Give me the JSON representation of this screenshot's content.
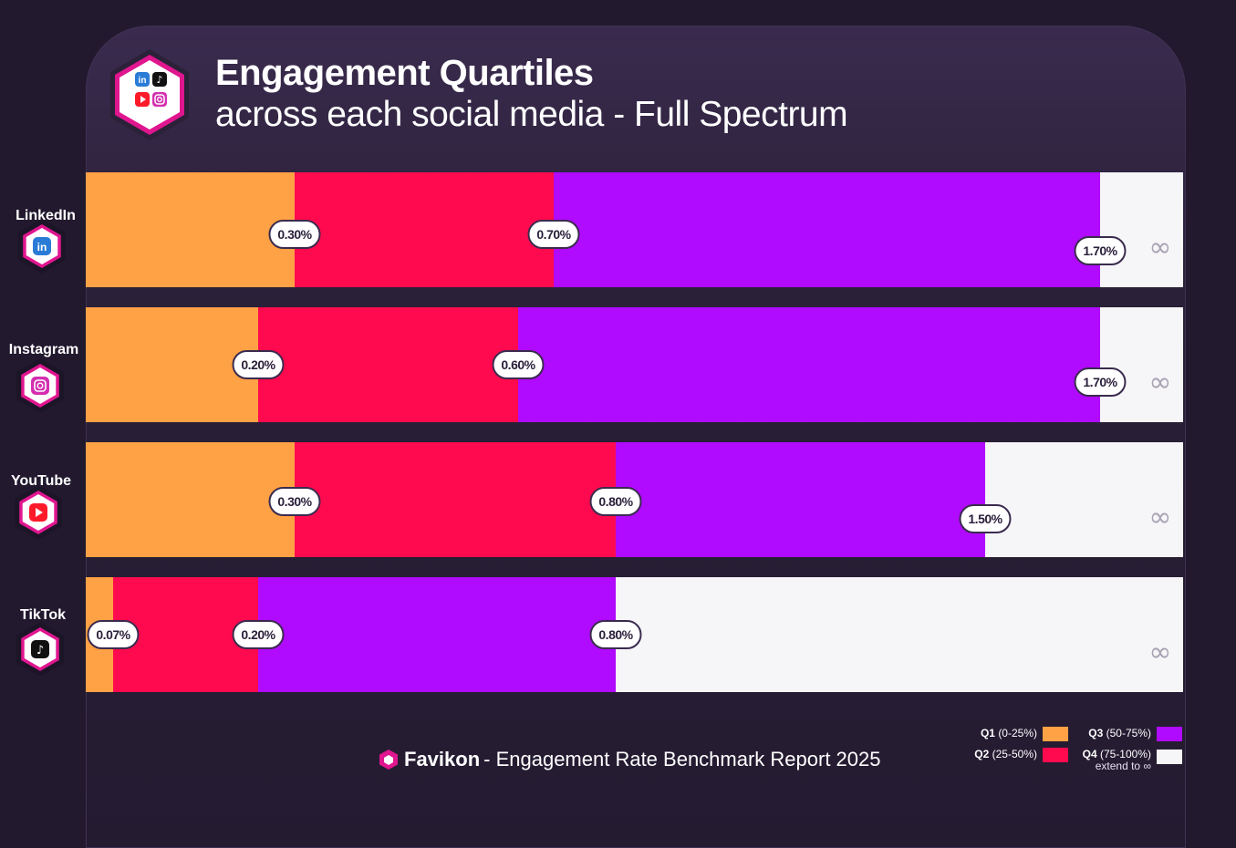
{
  "title": "Engagement Quartiles",
  "subtitle": "across each social media - Full Spectrum",
  "footer": {
    "brand": "Favikon",
    "rest": "- Engagement Rate Benchmark Report 2025"
  },
  "legend": {
    "q1": {
      "name": "Q1",
      "range": "(0-25%)"
    },
    "q2": {
      "name": "Q2",
      "range": "(25-50%)"
    },
    "q3": {
      "name": "Q3",
      "range": "(50-75%)"
    },
    "q4": {
      "name": "Q4",
      "range": "(75-100%)"
    },
    "q4_note": "extend to ∞"
  },
  "colors": {
    "q1": "#ffa145",
    "q2": "#ff0a4e",
    "q3": "#b00aff",
    "q4": "#f6f5f8",
    "background": "#22192f"
  },
  "chart_data": {
    "type": "bar",
    "orientation": "horizontal-stacked",
    "categories": [
      "LinkedIn",
      "Instagram",
      "YouTube",
      "TikTok"
    ],
    "series": [
      {
        "name": "Q1 (0-25%)",
        "labels": [
          "0.30%",
          "0.20%",
          "0.30%",
          "0.07%"
        ]
      },
      {
        "name": "Q2 (25-50%)",
        "labels": [
          "0.70%",
          "0.60%",
          "0.80%",
          "0.20%"
        ]
      },
      {
        "name": "Q3 (50-75%)",
        "labels": [
          "1.70%",
          "1.70%",
          "1.50%",
          "0.80%"
        ]
      },
      {
        "name": "Q4 (75-100%)",
        "labels": [
          "∞",
          "∞",
          "∞",
          "∞"
        ]
      }
    ],
    "boundaries": [
      [
        0.3,
        0.7,
        1.7
      ],
      [
        0.2,
        0.6,
        1.7
      ],
      [
        0.3,
        0.8,
        1.5
      ],
      [
        0.07,
        0.2,
        0.8
      ]
    ],
    "platform_icons": [
      "linkedin-icon",
      "instagram-icon",
      "youtube-icon",
      "tiktok-icon"
    ]
  }
}
